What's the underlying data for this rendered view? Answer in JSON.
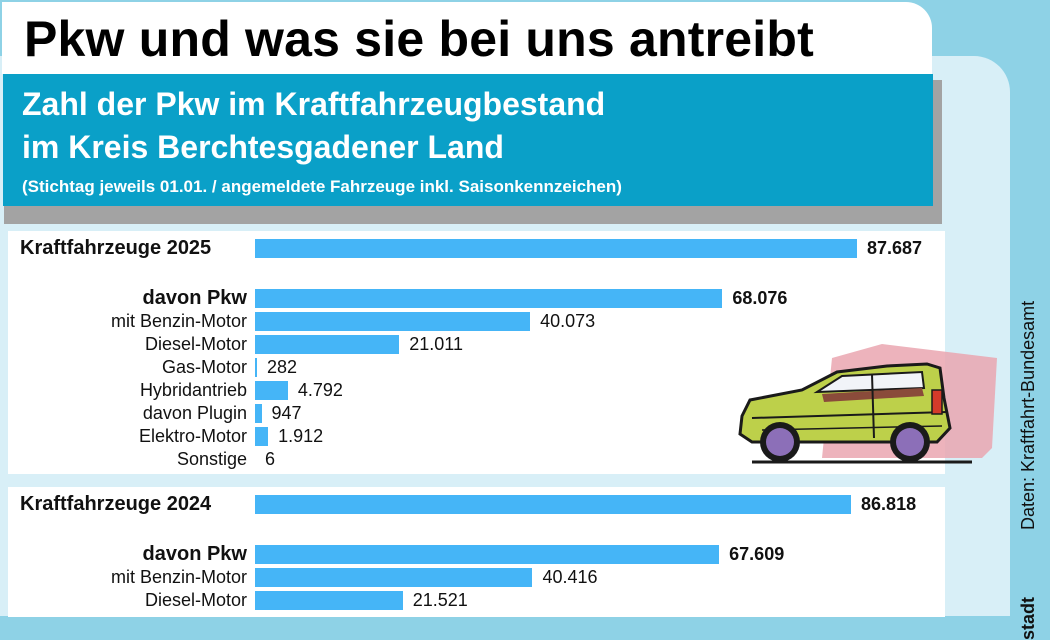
{
  "header": {
    "title": "Pkw und was sie bei uns antreibt",
    "subtitle_line1": "Zahl der Pkw im Kraftfahrzeugbestand",
    "subtitle_line2": "im Kreis Berchtesgadener Land",
    "subtitle_note": "(Stichtag jeweils 01.01.  /  angemeldete Fahrzeuge inkl. Saisonkennzeichen)"
  },
  "source": "Daten: Kraftfahrt-Bundesamt",
  "credit_fragment": "stadt",
  "colors": {
    "background": "#8ed2e6",
    "inner_background": "#d8eff7",
    "subtitle_box": "#0aa0c8",
    "bar": "#45b5f7",
    "shadow": "#a3a3a3"
  },
  "chart_data": {
    "type": "bar",
    "orientation": "horizontal",
    "title": "Pkw und was sie bei uns antreibt",
    "subtitle": "Zahl der Pkw im Kraftfahrzeugbestand im Kreis Berchtesgadener Land",
    "xlabel": "",
    "ylabel": "",
    "xlim": [
      0,
      87687
    ],
    "grid": false,
    "groups": [
      {
        "name": "2025",
        "rows": [
          {
            "label": "Kraftfahrzeuge 2025",
            "value": 87687,
            "display": "87.687",
            "style": "head"
          },
          {
            "label": "davon Pkw",
            "value": 68076,
            "display": "68.076",
            "style": "bold"
          },
          {
            "label": "mit Benzin-Motor",
            "value": 40073,
            "display": "40.073",
            "style": "normal"
          },
          {
            "label": "Diesel-Motor",
            "value": 21011,
            "display": "21.011",
            "style": "normal"
          },
          {
            "label": "Gas-Motor",
            "value": 282,
            "display": "282",
            "style": "normal"
          },
          {
            "label": "Hybridantrieb",
            "value": 4792,
            "display": "4.792",
            "style": "normal"
          },
          {
            "label": "davon Plugin",
            "value": 947,
            "display": "947",
            "style": "normal"
          },
          {
            "label": "Elektro-Motor",
            "value": 1912,
            "display": "1.912",
            "style": "normal"
          },
          {
            "label": "Sonstige",
            "value": 6,
            "display": "6",
            "style": "normal"
          }
        ]
      },
      {
        "name": "2024",
        "rows": [
          {
            "label": "Kraftfahrzeuge 2024",
            "value": 86818,
            "display": "86.818",
            "style": "head"
          },
          {
            "label": "davon Pkw",
            "value": 67609,
            "display": "67.609",
            "style": "bold"
          },
          {
            "label": "mit Benzin-Motor",
            "value": 40416,
            "display": "40.416",
            "style": "normal"
          },
          {
            "label": "Diesel-Motor",
            "value": 21521,
            "display": "21.521",
            "style": "normal"
          }
        ]
      }
    ]
  }
}
